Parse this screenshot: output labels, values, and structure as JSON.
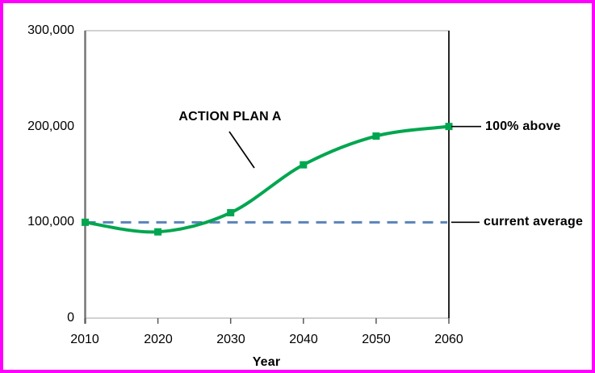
{
  "window": {
    "border_color": "#FF00FF",
    "background_color": "#FFFFFF"
  },
  "chart_data": {
    "type": "line",
    "title": "",
    "xlabel": "Year",
    "ylabel": "",
    "x": [
      2010,
      2020,
      2030,
      2040,
      2050,
      2060
    ],
    "x_tick_labels": [
      "2010",
      "2020",
      "2030",
      "2040",
      "2050",
      "2060"
    ],
    "y_ticks": [
      300000,
      200000,
      100000,
      0
    ],
    "y_tick_labels": [
      "300,000",
      "200,000",
      "100,000",
      "0"
    ],
    "xlim": [
      2010,
      2060
    ],
    "ylim": [
      0,
      300000
    ],
    "grid": false,
    "legend": "none",
    "series": [
      {
        "name": "ACTION PLAN A",
        "values": [
          100000,
          90000,
          110000,
          160000,
          190000,
          200000
        ],
        "color": "#00A64F",
        "marker": "square",
        "smooth": true,
        "line_width": 4
      }
    ],
    "reference_line": {
      "value": 100000,
      "label": "current average",
      "color": "#5B83B9",
      "style": "dashed"
    },
    "annotations": {
      "series_label": "ACTION PLAN A",
      "endpoint_label": "100% above",
      "reference_label": "current average"
    }
  }
}
